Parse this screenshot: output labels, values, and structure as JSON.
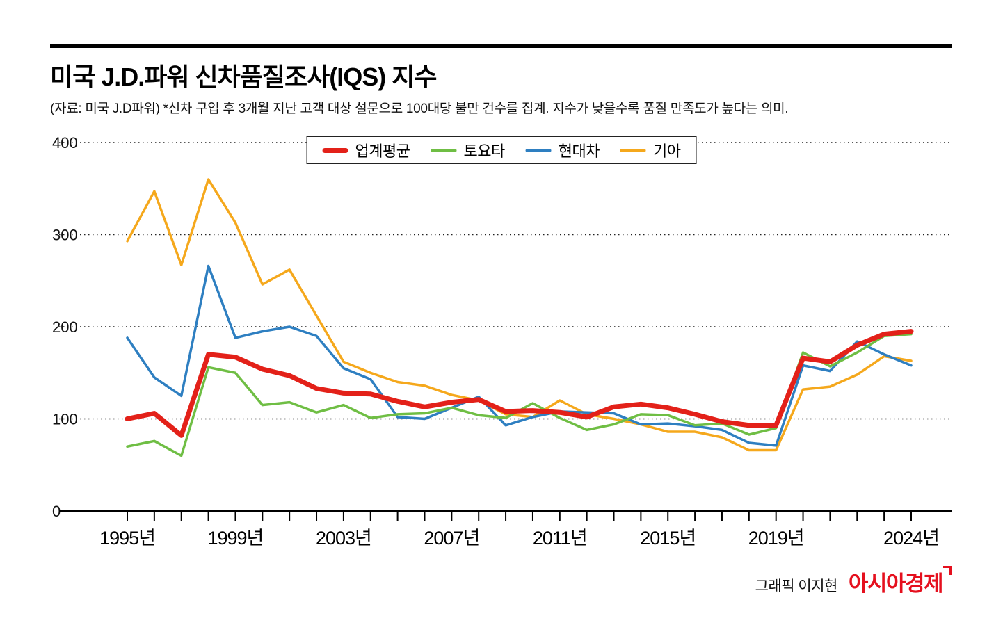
{
  "page": {
    "title": "미국 J.D.파워 신차품질조사(IQS) 지수",
    "subtitle": "(자료: 미국 J.D파워)  *신차 구입 후 3개월 지난 고객 대상 설문으로 100대당 불만 건수를 집계. 지수가 낮을수록 품질 만족도가 높다는 의미.",
    "credit": "그래픽 이지현",
    "logo_text": "아시아경제",
    "logo_color": "#e5101e"
  },
  "chart_data": {
    "type": "line",
    "title": "미국 J.D.파워 신차품질조사(IQS) 지수",
    "xlabel": "",
    "ylabel": "",
    "ylim": [
      0,
      400
    ],
    "y_ticks": [
      0,
      100,
      200,
      300,
      400
    ],
    "grid": "horizontal-dotted",
    "legend_position": "top-center",
    "x": [
      1995,
      1996,
      1997,
      1998,
      1999,
      2000,
      2001,
      2002,
      2003,
      2004,
      2005,
      2006,
      2007,
      2008,
      2009,
      2010,
      2011,
      2012,
      2013,
      2014,
      2015,
      2016,
      2017,
      2018,
      2019,
      2020,
      2021,
      2022,
      2023,
      2024
    ],
    "x_tick_labels": [
      "1995년",
      "1999년",
      "2003년",
      "2007년",
      "2011년",
      "2015년",
      "2019년",
      "2024년"
    ],
    "x_tick_label_years": [
      1995,
      1999,
      2003,
      2007,
      2011,
      2015,
      2019,
      2024
    ],
    "series": [
      {
        "name": "업계평균",
        "color": "#e32119",
        "line_width": 7,
        "values": [
          100,
          106,
          82,
          170,
          167,
          154,
          147,
          133,
          128,
          127,
          119,
          113,
          118,
          121,
          108,
          109,
          107,
          102,
          113,
          116,
          112,
          105,
          97,
          93,
          93,
          166,
          162,
          180,
          192,
          195
        ]
      },
      {
        "name": "토요타",
        "color": "#6fbe44",
        "line_width": 3.5,
        "values": [
          70,
          76,
          60,
          156,
          150,
          115,
          118,
          107,
          115,
          101,
          105,
          106,
          112,
          104,
          101,
          117,
          101,
          88,
          94,
          105,
          104,
          93,
          95,
          83,
          90,
          172,
          157,
          172,
          190,
          192
        ]
      },
      {
        "name": "현대차",
        "color": "#2e7fc1",
        "line_width": 3.5,
        "values": [
          188,
          145,
          125,
          266,
          188,
          195,
          200,
          190,
          155,
          143,
          102,
          100,
          112,
          124,
          93,
          102,
          108,
          107,
          106,
          94,
          95,
          92,
          88,
          74,
          71,
          158,
          152,
          184,
          170,
          158
        ]
      },
      {
        "name": "기아",
        "color": "#f5a81c",
        "line_width": 3.5,
        "values": [
          293,
          347,
          267,
          360,
          313,
          246,
          262,
          212,
          162,
          150,
          140,
          136,
          126,
          120,
          105,
          102,
          120,
          105,
          100,
          94,
          86,
          86,
          80,
          66,
          66,
          132,
          135,
          148,
          168,
          163
        ]
      }
    ]
  }
}
